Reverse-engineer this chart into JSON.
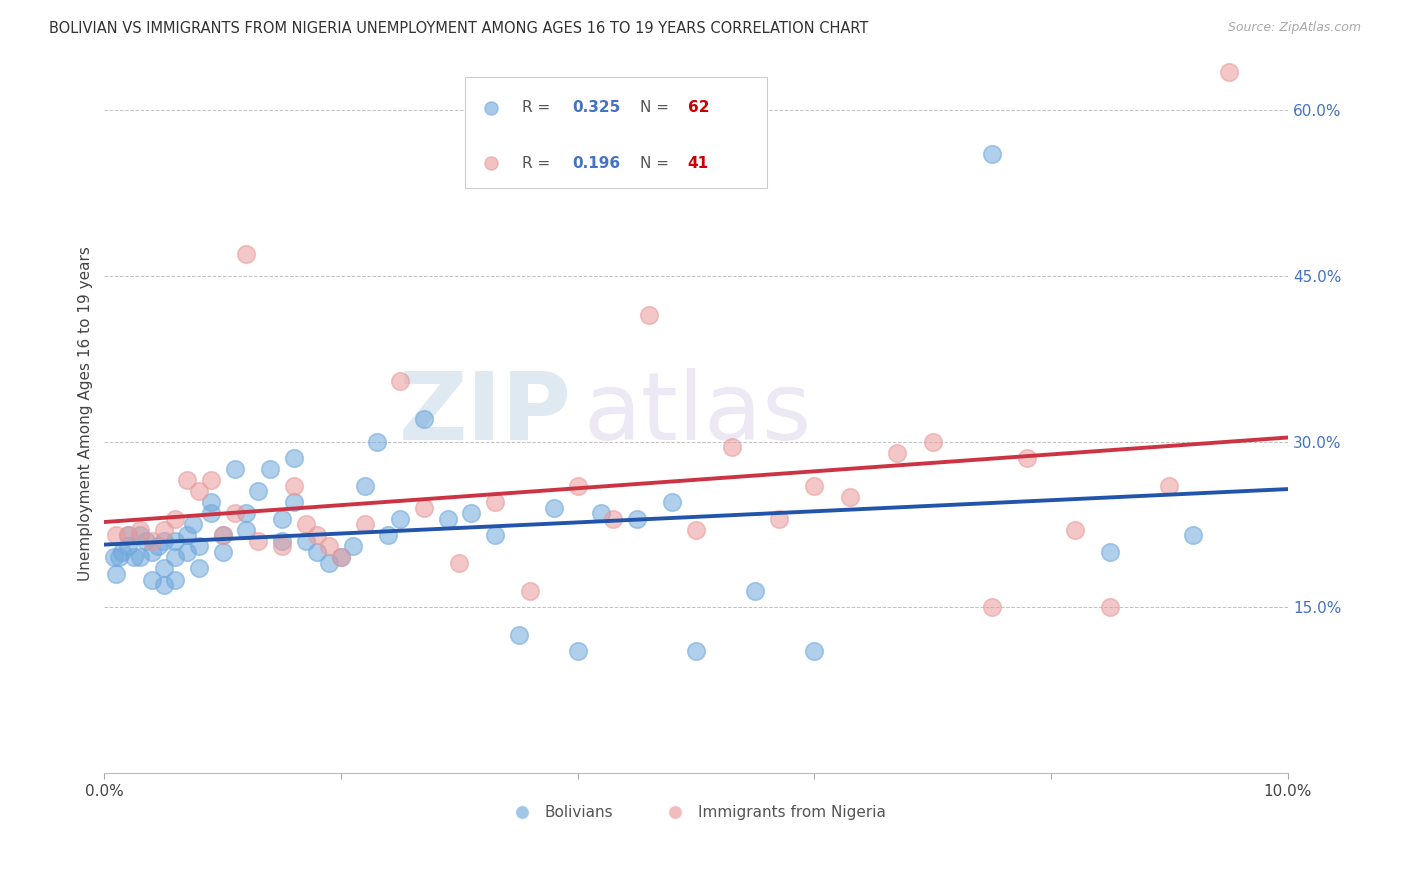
{
  "title": "BOLIVIAN VS IMMIGRANTS FROM NIGERIA UNEMPLOYMENT AMONG AGES 16 TO 19 YEARS CORRELATION CHART",
  "source": "Source: ZipAtlas.com",
  "ylabel": "Unemployment Among Ages 16 to 19 years",
  "xlim": [
    0.0,
    0.1
  ],
  "ylim": [
    0.0,
    0.65
  ],
  "xticks": [
    0.0,
    0.02,
    0.04,
    0.06,
    0.08,
    0.1
  ],
  "xtick_labels": [
    "0.0%",
    "",
    "",
    "",
    "",
    "10.0%"
  ],
  "ytick_positions": [
    0.15,
    0.3,
    0.45,
    0.6
  ],
  "ytick_labels": [
    "15.0%",
    "30.0%",
    "45.0%",
    "60.0%"
  ],
  "legend1_label": "Bolivians",
  "legend2_label": "Immigrants from Nigeria",
  "r1": "0.325",
  "n1": "62",
  "r2": "0.196",
  "n2": "41",
  "blue_color": "#6fa8dc",
  "pink_color": "#ea9999",
  "line_blue": "#2255aa",
  "line_pink": "#cc3344",
  "watermark_zip": "ZIP",
  "watermark_atlas": "atlas",
  "blue_x": [
    0.0008,
    0.001,
    0.0012,
    0.0015,
    0.002,
    0.002,
    0.0025,
    0.003,
    0.003,
    0.0035,
    0.004,
    0.004,
    0.0045,
    0.005,
    0.005,
    0.005,
    0.006,
    0.006,
    0.006,
    0.007,
    0.007,
    0.0075,
    0.008,
    0.008,
    0.009,
    0.009,
    0.01,
    0.01,
    0.011,
    0.012,
    0.012,
    0.013,
    0.014,
    0.015,
    0.015,
    0.016,
    0.016,
    0.017,
    0.018,
    0.019,
    0.02,
    0.021,
    0.022,
    0.023,
    0.024,
    0.025,
    0.027,
    0.029,
    0.031,
    0.033,
    0.035,
    0.038,
    0.04,
    0.042,
    0.045,
    0.048,
    0.05,
    0.055,
    0.06,
    0.075,
    0.085,
    0.092
  ],
  "blue_y": [
    0.195,
    0.18,
    0.195,
    0.2,
    0.205,
    0.215,
    0.195,
    0.195,
    0.215,
    0.21,
    0.175,
    0.2,
    0.205,
    0.17,
    0.185,
    0.21,
    0.175,
    0.195,
    0.21,
    0.2,
    0.215,
    0.225,
    0.185,
    0.205,
    0.235,
    0.245,
    0.2,
    0.215,
    0.275,
    0.22,
    0.235,
    0.255,
    0.275,
    0.21,
    0.23,
    0.245,
    0.285,
    0.21,
    0.2,
    0.19,
    0.195,
    0.205,
    0.26,
    0.3,
    0.215,
    0.23,
    0.32,
    0.23,
    0.235,
    0.215,
    0.125,
    0.24,
    0.11,
    0.235,
    0.23,
    0.245,
    0.11,
    0.165,
    0.11,
    0.56,
    0.2,
    0.215
  ],
  "pink_x": [
    0.001,
    0.002,
    0.003,
    0.004,
    0.005,
    0.006,
    0.007,
    0.008,
    0.009,
    0.01,
    0.011,
    0.012,
    0.013,
    0.015,
    0.016,
    0.017,
    0.018,
    0.019,
    0.02,
    0.022,
    0.025,
    0.027,
    0.03,
    0.033,
    0.036,
    0.04,
    0.043,
    0.046,
    0.05,
    0.053,
    0.057,
    0.06,
    0.063,
    0.067,
    0.07,
    0.075,
    0.078,
    0.082,
    0.085,
    0.09,
    0.095
  ],
  "pink_y": [
    0.215,
    0.215,
    0.22,
    0.21,
    0.22,
    0.23,
    0.265,
    0.255,
    0.265,
    0.215,
    0.235,
    0.47,
    0.21,
    0.205,
    0.26,
    0.225,
    0.215,
    0.205,
    0.195,
    0.225,
    0.355,
    0.24,
    0.19,
    0.245,
    0.165,
    0.26,
    0.23,
    0.415,
    0.22,
    0.295,
    0.23,
    0.26,
    0.25,
    0.29,
    0.3,
    0.15,
    0.285,
    0.22,
    0.15,
    0.26,
    0.635
  ]
}
